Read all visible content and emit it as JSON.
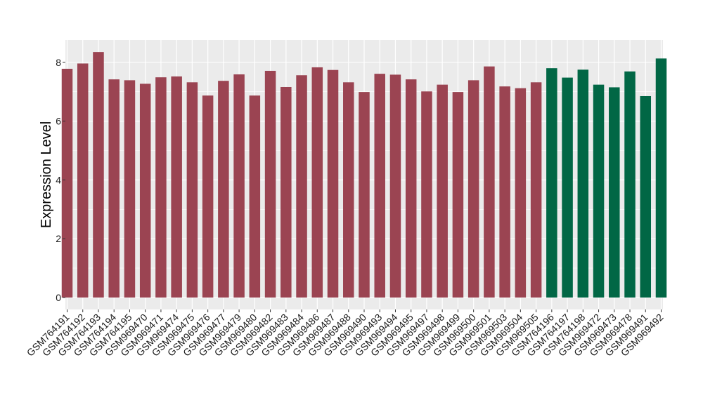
{
  "chart_data": {
    "type": "bar",
    "title": "",
    "xlabel": "",
    "ylabel": "Expression Level",
    "ylim": [
      0,
      8.9
    ],
    "yticks": [
      0,
      2,
      4,
      6,
      8
    ],
    "grid": true,
    "legend": "none",
    "colors": {
      "panel_background": "#EBEBEB",
      "gridline": "#FFFFFF",
      "group_a": "#9B4452",
      "group_b": "#016745"
    },
    "categories": [
      "GSM764191",
      "GSM764192",
      "GSM764193",
      "GSM764194",
      "GSM764195",
      "GSM969470",
      "GSM969471",
      "GSM969474",
      "GSM969475",
      "GSM969476",
      "GSM969477",
      "GSM969479",
      "GSM969480",
      "GSM969482",
      "GSM969483",
      "GSM969484",
      "GSM969486",
      "GSM969487",
      "GSM969488",
      "GSM969490",
      "GSM969493",
      "GSM969494",
      "GSM969495",
      "GSM969497",
      "GSM969498",
      "GSM969499",
      "GSM969500",
      "GSM969501",
      "GSM969503",
      "GSM969504",
      "GSM969505",
      "GSM764196",
      "GSM764197",
      "GSM764198",
      "GSM969472",
      "GSM969473",
      "GSM969478",
      "GSM969491",
      "GSM969492"
    ],
    "values": [
      7.78,
      7.96,
      8.35,
      7.42,
      7.39,
      7.27,
      7.49,
      7.52,
      7.32,
      6.87,
      7.37,
      7.59,
      6.87,
      7.71,
      7.16,
      7.56,
      7.83,
      7.74,
      7.32,
      6.99,
      7.61,
      7.58,
      7.42,
      7.01,
      7.24,
      6.99,
      7.39,
      7.86,
      7.18,
      7.12,
      7.32,
      7.8,
      7.48,
      7.75,
      7.24,
      7.15,
      7.69,
      6.85,
      8.13
    ],
    "group": [
      "a",
      "a",
      "a",
      "a",
      "a",
      "a",
      "a",
      "a",
      "a",
      "a",
      "a",
      "a",
      "a",
      "a",
      "a",
      "a",
      "a",
      "a",
      "a",
      "a",
      "a",
      "a",
      "a",
      "a",
      "a",
      "a",
      "a",
      "a",
      "a",
      "a",
      "a",
      "b",
      "b",
      "b",
      "b",
      "b",
      "b",
      "b",
      "b"
    ]
  }
}
